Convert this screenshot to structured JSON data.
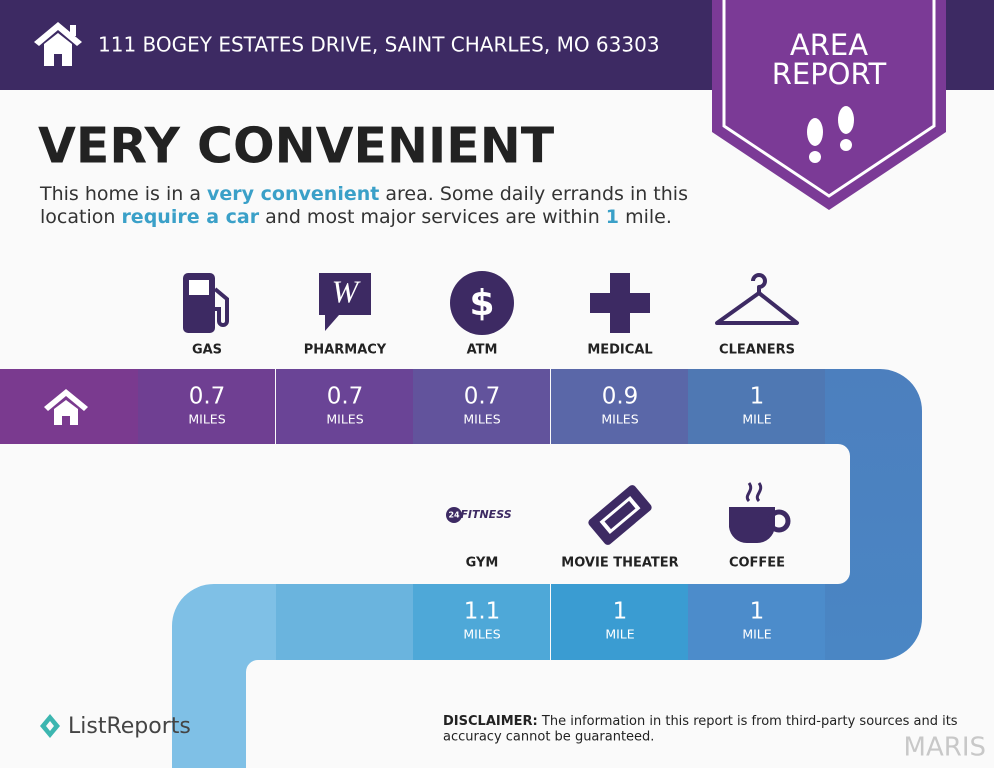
{
  "header": {
    "address": "111 BOGEY ESTATES DRIVE, SAINT CHARLES, MO 63303",
    "badge": [
      "AREA",
      "REPORT"
    ]
  },
  "headline": "VERY CONVENIENT",
  "description": {
    "lines": [
      [
        "This home is in a ",
        "very convenient",
        " area. Some daily errands in this"
      ],
      [
        "location ",
        "require a car",
        " and most major services are within ",
        "1",
        " mile."
      ]
    ]
  },
  "services": [
    {
      "label": "GAS",
      "distance": 0.7,
      "unit": "MILES"
    },
    {
      "label": "PHARMACY",
      "distance": 0.7,
      "unit": "MILES"
    },
    {
      "label": "ATM",
      "distance": 0.7,
      "unit": "MILES"
    },
    {
      "label": "MEDICAL",
      "distance": 0.9,
      "unit": "MILES"
    },
    {
      "label": "CLEANERS",
      "distance": 1,
      "unit": "MILE"
    },
    {
      "label": "GYM",
      "distance": 1.1,
      "unit": "MILES",
      "logo": {
        "badge": "24",
        "text": "FITNESS"
      }
    },
    {
      "label": "MOVIE THEATER",
      "distance": 1,
      "unit": "MILE"
    },
    {
      "label": "COFFEE",
      "distance": 1,
      "unit": "MILE"
    }
  ],
  "footer": {
    "brand": "ListReports",
    "disclaimer_label": "DISCLAIMER:",
    "disclaimer": [
      "The information in this report is from third-party sources and its",
      "accuracy cannot be guaranteed."
    ],
    "watermark": "MARIS"
  }
}
